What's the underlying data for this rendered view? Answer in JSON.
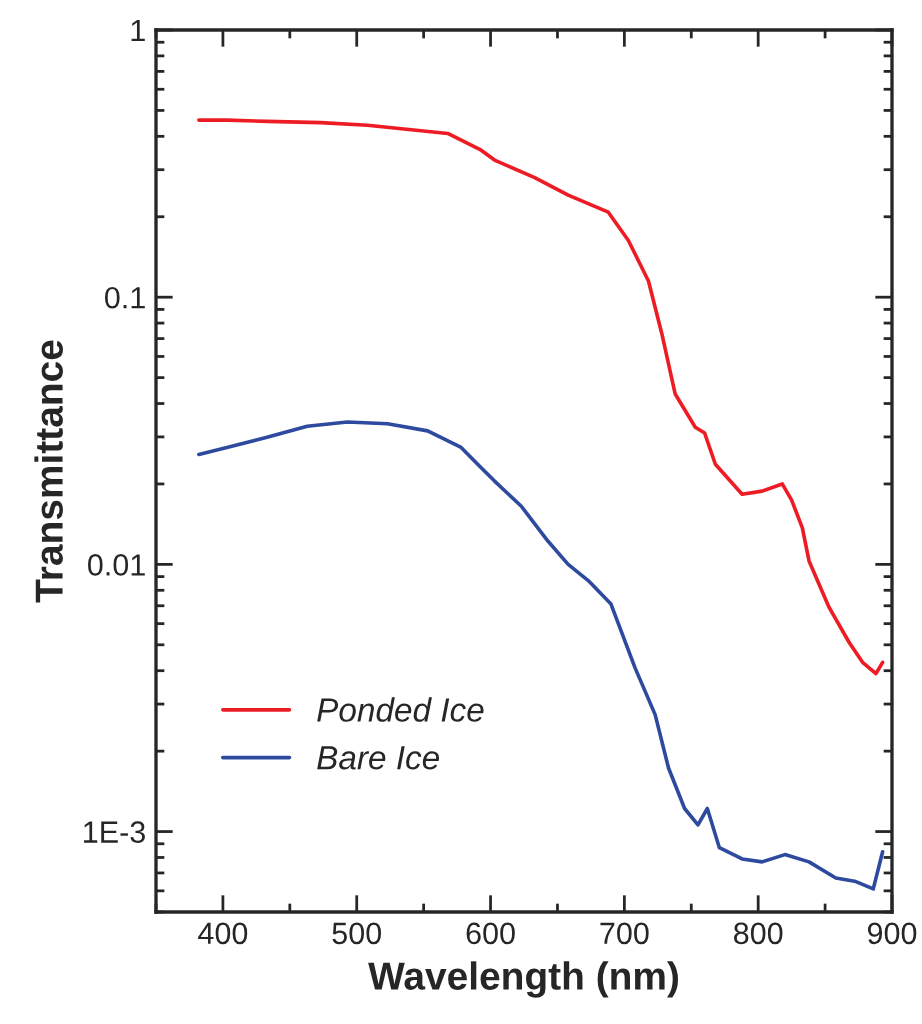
{
  "chart_data": {
    "type": "line",
    "xlabel": "Wavelength (nm)",
    "ylabel": "Transmittance",
    "log": "y",
    "xlim": [
      350,
      900
    ],
    "xticks": [
      400,
      500,
      600,
      700,
      800,
      900
    ],
    "ylim": [
      0.0005,
      1
    ],
    "yticks": [
      1,
      0.1,
      0.01,
      {
        "value": 0.001,
        "label": "1E-3"
      }
    ],
    "legend": "bottom left",
    "grid": false,
    "marker": "none",
    "line_style": "solid",
    "series": [
      {
        "name": "Ponded Ice",
        "color": "#ed1c24",
        "x": [
          382,
          403,
          433,
          473,
          508,
          568,
          593,
          603,
          633,
          658,
          688,
          703,
          718,
          728,
          738,
          753,
          760,
          768,
          788,
          803,
          818,
          825,
          833,
          838,
          853,
          868,
          878,
          888,
          893
        ],
        "values": [
          0.46,
          0.46,
          0.455,
          0.45,
          0.44,
          0.41,
          0.355,
          0.326,
          0.28,
          0.241,
          0.208,
          0.163,
          0.115,
          0.073,
          0.0434,
          0.0326,
          0.031,
          0.0237,
          0.0183,
          0.0188,
          0.02,
          0.0174,
          0.0137,
          0.0103,
          0.0069,
          0.0051,
          0.0043,
          0.0039,
          0.0043
        ]
      },
      {
        "name": "Bare Ice",
        "color": "#2e4a9e",
        "x": [
          382,
          403,
          433,
          463,
          493,
          523,
          553,
          578,
          593,
          603,
          623,
          643,
          658,
          673,
          690,
          708,
          723,
          733,
          745,
          755,
          762,
          771,
          788,
          803,
          820,
          838,
          858,
          873,
          886,
          893
        ],
        "values": [
          0.0258,
          0.0274,
          0.0299,
          0.0329,
          0.0341,
          0.0336,
          0.0316,
          0.0274,
          0.023,
          0.0205,
          0.0165,
          0.0122,
          0.01,
          0.0087,
          0.0071,
          0.0041,
          0.00274,
          0.00173,
          0.00122,
          0.00106,
          0.00122,
          0.00087,
          0.00079,
          0.00077,
          0.00082,
          0.00077,
          0.00067,
          0.00065,
          0.00061,
          0.00084
        ]
      }
    ]
  }
}
